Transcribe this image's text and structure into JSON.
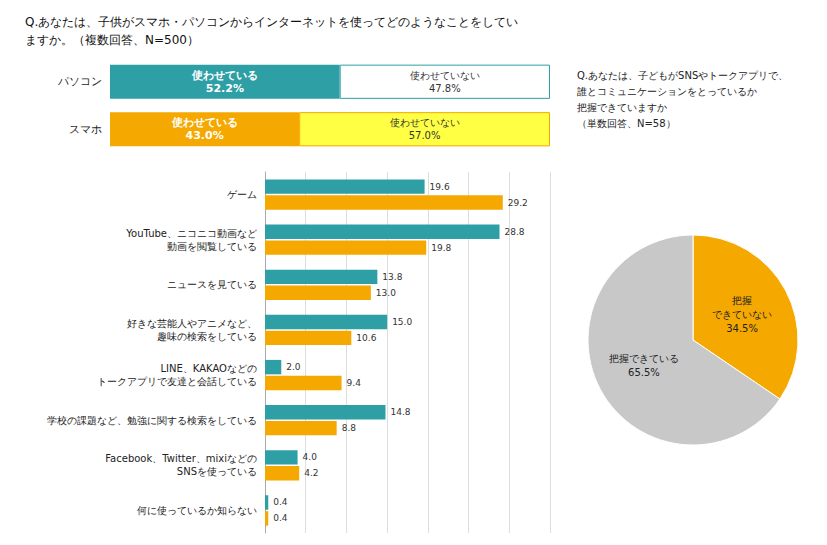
{
  "chart_data": [
    {
      "type": "bar",
      "title": "Q.あなたは、子供がスマホ・パソコンからインターネットを使ってどのようなことをしてい\nますか。（複数回答、N=500）",
      "orientation": "horizontal",
      "stacked": true,
      "categories": [
        "パソコン",
        "スマホ"
      ],
      "series": [
        {
          "name": "使わせている",
          "values": [
            52.2,
            43.0
          ],
          "value_labels": [
            "52.2%",
            "43.0%"
          ],
          "colors": [
            "#2e9fa5",
            "#f5a800"
          ]
        },
        {
          "name": "使わせていない",
          "values": [
            47.8,
            57.0
          ],
          "value_labels": [
            "47.8%",
            "57.0%"
          ],
          "colors": [
            "#ffffff",
            "#ffff44"
          ]
        }
      ],
      "xlim": [
        0,
        100
      ],
      "data_labels": true,
      "tick_labels": "y",
      "grid": false
    },
    {
      "type": "bar",
      "orientation": "horizontal",
      "categories": [
        "ゲーム",
        "YouTube、ニコニコ動画など\n動画を閲覧している",
        "ニュースを見ている",
        "好きな芸能人やアニメなど、\n趣味の検索をしている",
        "LINE、KAKAOなどの\nトークアプリで友達と会話している",
        "学校の課題など、勉強に関する検索をしている",
        "Facebook、Twitter、mixiなどの\nSNSを使っている",
        "何に使っているか知らない"
      ],
      "series": [
        {
          "color": "#2e9fa5",
          "values": [
            19.6,
            28.8,
            13.8,
            15.0,
            2.0,
            14.8,
            4.0,
            0.4
          ],
          "value_labels": [
            "19.6",
            "28.8",
            "13.8",
            "15.0",
            "2.0",
            "14.8",
            "4.0",
            "0.4"
          ]
        },
        {
          "color": "#f5a800",
          "values": [
            29.2,
            19.8,
            13.0,
            10.6,
            9.4,
            8.8,
            4.2,
            0.4
          ],
          "value_labels": [
            "29.2",
            "19.8",
            "13.0",
            "10.6",
            "9.4",
            "8.8",
            "4.2",
            "0.4"
          ]
        }
      ],
      "xlim": [
        0,
        35
      ],
      "xticks": [
        0,
        5,
        10,
        15,
        20,
        25,
        30,
        35
      ],
      "data_labels": true,
      "tick_labels": "y",
      "grid": true
    },
    {
      "type": "pie",
      "title": "Q.あなたは、子どもがSNSやトークアプリで、\n誰とコミュニケーションをとっているか\n把握できていますか\n（単数回答、N=58）",
      "categories": [
        "把握\nできていない",
        "把握できている"
      ],
      "values": [
        34.5,
        65.5
      ],
      "value_labels": [
        "34.5%",
        "65.5%"
      ],
      "colors": [
        "#f5a800",
        "#c8c8c8"
      ],
      "data_labels": true
    }
  ]
}
